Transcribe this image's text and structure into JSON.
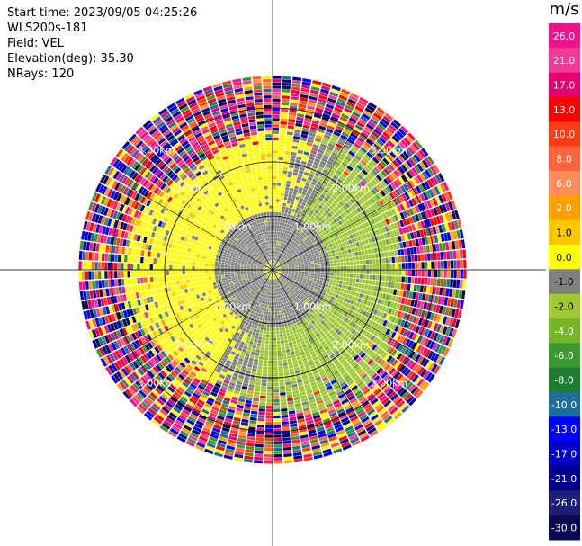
{
  "header": {
    "start_time": "Start time: 2023/09/05 04:25:26",
    "instrument": "WLS200s-181",
    "field": "Field: VEL",
    "elevation": "Elevation(deg): 35.30",
    "nrays": "NRays: 120"
  },
  "chart_data": {
    "type": "heatmap",
    "projection": "polar-ppi",
    "field": "VEL",
    "units": "m/s",
    "n_rays": 120,
    "elevation_deg": 35.3,
    "range_rings_km": [
      1.0,
      2.0,
      3.0
    ],
    "ring_label_text": {
      "1": "1.00km",
      "2": "2.00km",
      "3": "3.00km"
    },
    "colorbar": {
      "title": "m/s",
      "ticks": [
        "26.0",
        "21.0",
        "17.0",
        "13.0",
        "10.0",
        "8.0",
        "6.0",
        "2.0",
        "1.0",
        "0.0",
        "-1.0",
        "-2.0",
        "-4.0",
        "-6.0",
        "-8.0",
        "-10.0",
        "-13.0",
        "-17.0",
        "-21.0",
        "-26.0",
        "-30.0"
      ],
      "colors": [
        "#f0148c",
        "#f03c96",
        "#e6006e",
        "#ff0000",
        "#ff3c14",
        "#ff643c",
        "#ff8c5a",
        "#ffa000",
        "#ffc800",
        "#ffff00",
        "#808080",
        "#a0c832",
        "#78b428",
        "#3c9632",
        "#1e7d32",
        "#1e6e9b",
        "#0000ff",
        "#0000c8",
        "#00008c",
        "#1e1e78",
        "#0a0a50"
      ]
    },
    "regions": [
      {
        "name": "near-zero core (gray)",
        "r_km": [
          0.0,
          1.2
        ],
        "value": 0.0
      },
      {
        "name": "positive sector NW (yellow)",
        "r_km": [
          1.0,
          2.6
        ],
        "azimuth_deg": [
          205,
          355
        ],
        "value": 1.5
      },
      {
        "name": "negative sector SE (green)",
        "r_km": [
          1.0,
          2.6
        ],
        "azimuth_deg": [
          25,
          185
        ],
        "value": -2.5
      },
      {
        "name": "noise beyond 2.6 km",
        "r_km": [
          2.6,
          3.6
        ],
        "value": "random"
      }
    ]
  }
}
